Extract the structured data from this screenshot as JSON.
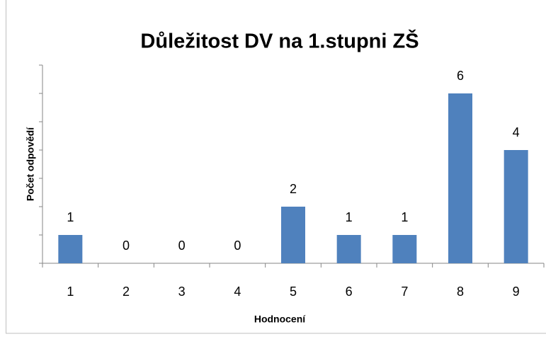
{
  "chart_data": {
    "type": "bar",
    "title": "Důležitost DV na 1.stupni ZŠ",
    "x_label": "Hodnocení",
    "y_label": "Počet odpovědí",
    "categories": [
      "1",
      "2",
      "3",
      "4",
      "5",
      "6",
      "7",
      "8",
      "9"
    ],
    "values": [
      1,
      0,
      0,
      0,
      2,
      1,
      1,
      6,
      4
    ],
    "color": "#4f81bd",
    "ylim": [
      0,
      7
    ],
    "yticks": [
      0,
      1,
      2,
      3,
      4,
      5,
      6,
      7
    ],
    "grid": false
  }
}
